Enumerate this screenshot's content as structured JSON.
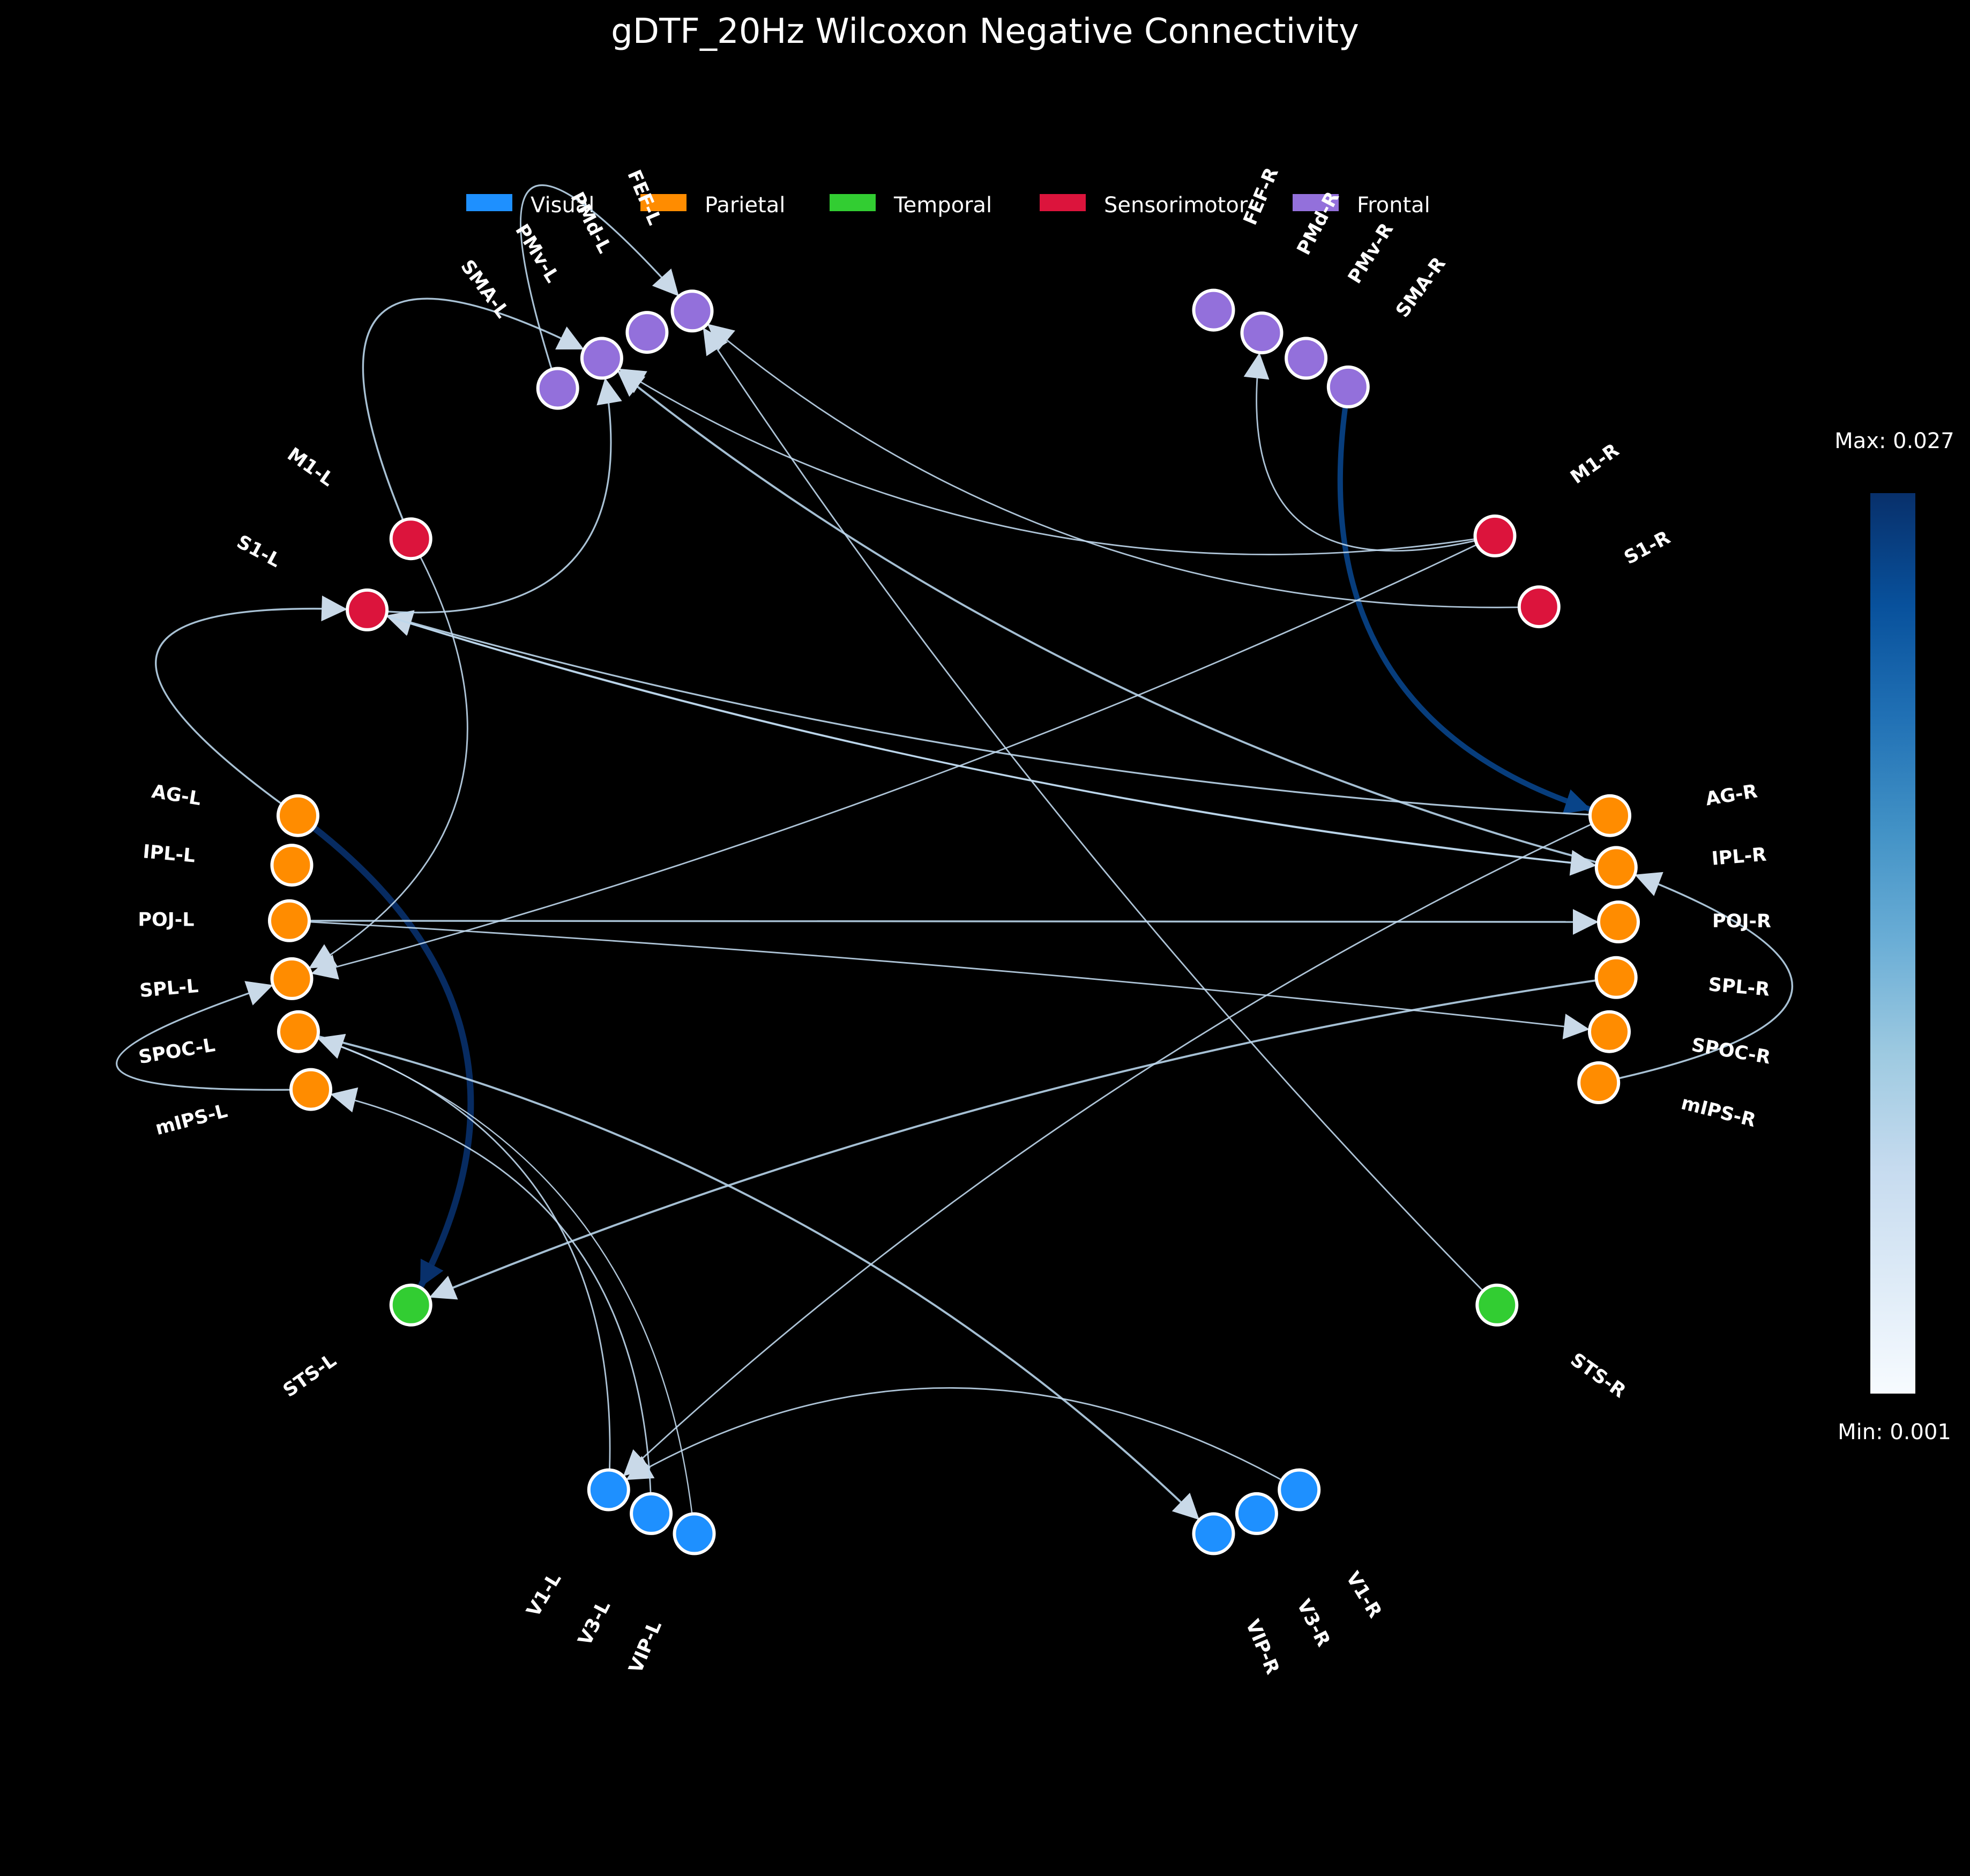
{
  "title": "gDTF_20Hz Wilcoxon Negative Connectivity",
  "legend": [
    {
      "label": "Visual",
      "color": "#1e90ff"
    },
    {
      "label": "Parietal",
      "color": "#ff8c00"
    },
    {
      "label": "Temporal",
      "color": "#32cd32"
    },
    {
      "label": "Sensorimotor",
      "color": "#dc143c"
    },
    {
      "label": "Frontal",
      "color": "#9370db"
    }
  ],
  "colorbar": {
    "max_label": "Max: 0.027",
    "min_label": "Min: 0.001",
    "max": 0.027,
    "min": 0.001,
    "colormap": "Blues"
  },
  "nodes": [
    {
      "id": "FEF-L",
      "label": "FEF-L",
      "group": "Frontal"
    },
    {
      "id": "PMd-L",
      "label": "PMd-L",
      "group": "Frontal"
    },
    {
      "id": "PMv-L",
      "label": "PMv-L",
      "group": "Frontal"
    },
    {
      "id": "SMA-L",
      "label": "SMA-L",
      "group": "Frontal"
    },
    {
      "id": "M1-L",
      "label": "M1-L",
      "group": "Sensorimotor"
    },
    {
      "id": "S1-L",
      "label": "S1-L",
      "group": "Sensorimotor"
    },
    {
      "id": "AG-L",
      "label": "AG-L",
      "group": "Parietal"
    },
    {
      "id": "IPL-L",
      "label": "IPL-L",
      "group": "Parietal"
    },
    {
      "id": "POJ-L",
      "label": "POJ-L",
      "group": "Parietal"
    },
    {
      "id": "SPL-L",
      "label": "SPL-L",
      "group": "Parietal"
    },
    {
      "id": "SPOC-L",
      "label": "SPOC-L",
      "group": "Parietal"
    },
    {
      "id": "mIPS-L",
      "label": "mIPS-L",
      "group": "Parietal"
    },
    {
      "id": "STS-L",
      "label": "STS-L",
      "group": "Temporal"
    },
    {
      "id": "V1-L",
      "label": "V1-L",
      "group": "Visual"
    },
    {
      "id": "V3-L",
      "label": "V3-L",
      "group": "Visual"
    },
    {
      "id": "VIP-L",
      "label": "VIP-L",
      "group": "Visual"
    },
    {
      "id": "FEF-R",
      "label": "FEF-R",
      "group": "Frontal"
    },
    {
      "id": "PMd-R",
      "label": "PMd-R",
      "group": "Frontal"
    },
    {
      "id": "PMv-R",
      "label": "PMv-R",
      "group": "Frontal"
    },
    {
      "id": "SMA-R",
      "label": "SMA-R",
      "group": "Frontal"
    },
    {
      "id": "M1-R",
      "label": "M1-R",
      "group": "Sensorimotor"
    },
    {
      "id": "S1-R",
      "label": "S1-R",
      "group": "Sensorimotor"
    },
    {
      "id": "AG-R",
      "label": "AG-R",
      "group": "Parietal"
    },
    {
      "id": "IPL-R",
      "label": "IPL-R",
      "group": "Parietal"
    },
    {
      "id": "POJ-R",
      "label": "POJ-R",
      "group": "Parietal"
    },
    {
      "id": "SPL-R",
      "label": "SPL-R",
      "group": "Parietal"
    },
    {
      "id": "SPOC-R",
      "label": "SPOC-R",
      "group": "Parietal"
    },
    {
      "id": "mIPS-R",
      "label": "mIPS-R",
      "group": "Parietal"
    },
    {
      "id": "STS-R",
      "label": "STS-R",
      "group": "Temporal"
    },
    {
      "id": "V1-R",
      "label": "V1-R",
      "group": "Visual"
    },
    {
      "id": "V3-R",
      "label": "V3-R",
      "group": "Visual"
    },
    {
      "id": "VIP-R",
      "label": "VIP-R",
      "group": "Visual"
    }
  ],
  "edges": [
    {
      "from": "SMA-R",
      "to": "AG-R",
      "weight": 0.022
    },
    {
      "from": "AG-L",
      "to": "STS-L",
      "weight": 0.027
    },
    {
      "from": "IPL-R",
      "to": "PMv-L",
      "weight": 0.006
    },
    {
      "from": "SPOC-L",
      "to": "VIP-R",
      "weight": 0.006
    },
    {
      "from": "SPL-R",
      "to": "STS-L",
      "weight": 0.006
    },
    {
      "from": "POJ-L",
      "to": "POJ-R",
      "weight": 0.005
    },
    {
      "from": "IPL-R",
      "to": "S1-L",
      "weight": 0.005
    },
    {
      "from": "AG-R",
      "to": "S1-L",
      "weight": 0.004
    },
    {
      "from": "AG-L",
      "to": "S1-L",
      "weight": 0.005
    },
    {
      "from": "mIPS-R",
      "to": "IPL-R",
      "weight": 0.005
    },
    {
      "from": "M1-L",
      "to": "PMv-L",
      "weight": 0.005
    },
    {
      "from": "S1-L",
      "to": "PMv-L",
      "weight": 0.004
    },
    {
      "from": "SMA-L",
      "to": "FEF-L",
      "weight": 0.004
    },
    {
      "from": "S1-L",
      "to": "IPL-R",
      "weight": 0.004
    },
    {
      "from": "mIPS-L",
      "to": "SPL-L",
      "weight": 0.004
    },
    {
      "from": "POJ-L",
      "to": "SPOC-R",
      "weight": 0.003
    },
    {
      "from": "M1-L",
      "to": "SPL-L",
      "weight": 0.003
    },
    {
      "from": "M1-R",
      "to": "PMd-R",
      "weight": 0.003
    },
    {
      "from": "M1-R",
      "to": "PMv-L",
      "weight": 0.003
    },
    {
      "from": "S1-R",
      "to": "FEF-L",
      "weight": 0.003
    },
    {
      "from": "M1-R",
      "to": "SPL-L",
      "weight": 0.003
    },
    {
      "from": "AG-R",
      "to": "V1-L",
      "weight": 0.003
    },
    {
      "from": "STS-R",
      "to": "FEF-L",
      "weight": 0.003
    },
    {
      "from": "V1-R",
      "to": "V1-L",
      "weight": 0.003
    },
    {
      "from": "V1-L",
      "to": "SPOC-L",
      "weight": 0.003
    },
    {
      "from": "V3-L",
      "to": "mIPS-L",
      "weight": 0.003
    },
    {
      "from": "VIP-L",
      "to": "SPOC-L",
      "weight": 0.002
    }
  ]
}
